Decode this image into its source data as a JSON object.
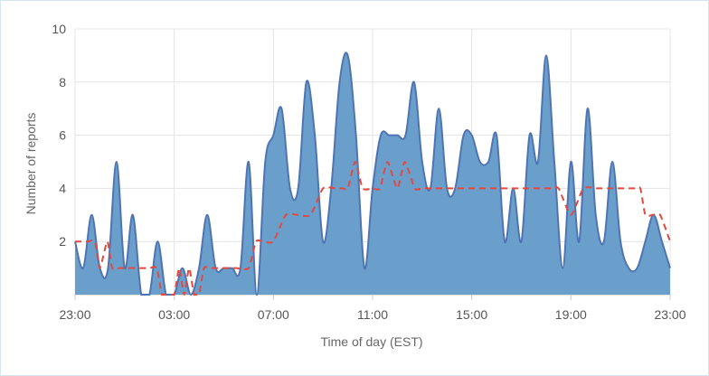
{
  "chart_data": {
    "type": "area",
    "title": "",
    "xlabel": "Time of day (EST)",
    "ylabel": "Number of reports",
    "ylim": [
      0,
      10
    ],
    "y_ticks": [
      "10",
      "8",
      "6",
      "4",
      "2"
    ],
    "x_tick_labels": [
      "23:00",
      "03:00",
      "07:00",
      "11:00",
      "15:00",
      "19:00",
      "23:00"
    ],
    "x_range_hours": [
      0,
      24
    ],
    "grid": true,
    "legend": "none",
    "colors": {
      "area_fill": "#6a9fcb",
      "area_line": "#4f74b3",
      "median_line": "#e04a3f",
      "grid": "#e4e4e4"
    },
    "series": [
      {
        "style": "filled-area",
        "x": [
          0,
          0.33,
          0.67,
          1.0,
          1.33,
          1.67,
          2.0,
          2.33,
          2.67,
          3.0,
          3.33,
          3.67,
          4.0,
          4.33,
          4.67,
          5.0,
          5.33,
          5.67,
          6.0,
          6.33,
          6.67,
          7.0,
          7.33,
          7.67,
          8.0,
          8.33,
          8.67,
          9.0,
          9.33,
          9.67,
          10.0,
          10.33,
          10.67,
          11.0,
          11.33,
          11.67,
          12.0,
          12.33,
          12.67,
          13.0,
          13.33,
          13.67,
          14.0,
          14.33,
          14.67,
          15.0,
          15.33,
          15.67,
          16.0,
          16.33,
          16.67,
          17.0,
          17.33,
          17.67,
          18.0,
          18.33,
          18.67,
          19.0,
          19.33,
          19.67,
          20.0,
          20.33,
          20.67,
          21.0,
          21.33,
          21.67,
          22.0,
          22.33,
          22.67,
          23.0,
          23.33,
          23.67,
          24.0
        ],
        "values": [
          2,
          1,
          3,
          1,
          1,
          5,
          1,
          3,
          0,
          0,
          2,
          0,
          0,
          1,
          0,
          1,
          3,
          1,
          1,
          1,
          1,
          5,
          0,
          5,
          6,
          7,
          4,
          4,
          8,
          6,
          2,
          4,
          8,
          9,
          6,
          1,
          4,
          6,
          6,
          6,
          6,
          8,
          5,
          4,
          7,
          4,
          4,
          6,
          6,
          5,
          5,
          6,
          2,
          4,
          2,
          6,
          5,
          9,
          5,
          1,
          5,
          2,
          7,
          3,
          2,
          5,
          2,
          1,
          1,
          2,
          3,
          2,
          1
        ]
      },
      {
        "style": "dashed-line",
        "x": [
          0,
          0.5,
          0.8,
          1.0,
          1.3,
          1.5,
          1.8,
          2.0,
          2.5,
          3.0,
          3.3,
          3.5,
          3.7,
          4.0,
          4.2,
          4.4,
          4.6,
          4.8,
          5.0,
          5.2,
          5.5,
          6.0,
          6.5,
          7.0,
          7.3,
          7.6,
          8.0,
          8.5,
          9.0,
          9.5,
          10.0,
          10.5,
          10.8,
          11.0,
          11.3,
          11.6,
          12.0,
          12.3,
          12.6,
          13.0,
          13.3,
          13.7,
          14.0,
          14.5,
          15.0,
          15.5,
          16.0,
          16.5,
          17.0,
          17.5,
          18.0,
          18.5,
          19.0,
          19.2,
          19.5,
          20.0,
          20.5,
          21.0,
          21.2,
          21.5,
          21.8,
          22.0,
          22.3,
          22.6,
          22.8,
          23.0,
          23.3,
          23.6,
          24.0
        ],
        "values": [
          2,
          2,
          2,
          1,
          2,
          1,
          1,
          1,
          1,
          1,
          1,
          0,
          0,
          0,
          1,
          0,
          1,
          0,
          0,
          1,
          1,
          1,
          1,
          1,
          2,
          2,
          2,
          3,
          3,
          3,
          4,
          4,
          4,
          4,
          5,
          4,
          4,
          4,
          5,
          4,
          5,
          4,
          4,
          4,
          4,
          4,
          4,
          4,
          4,
          4,
          4,
          4,
          4,
          4,
          4,
          3,
          4,
          4,
          4,
          4,
          4,
          4,
          4,
          4,
          4,
          3,
          3,
          3,
          2
        ]
      }
    ]
  }
}
